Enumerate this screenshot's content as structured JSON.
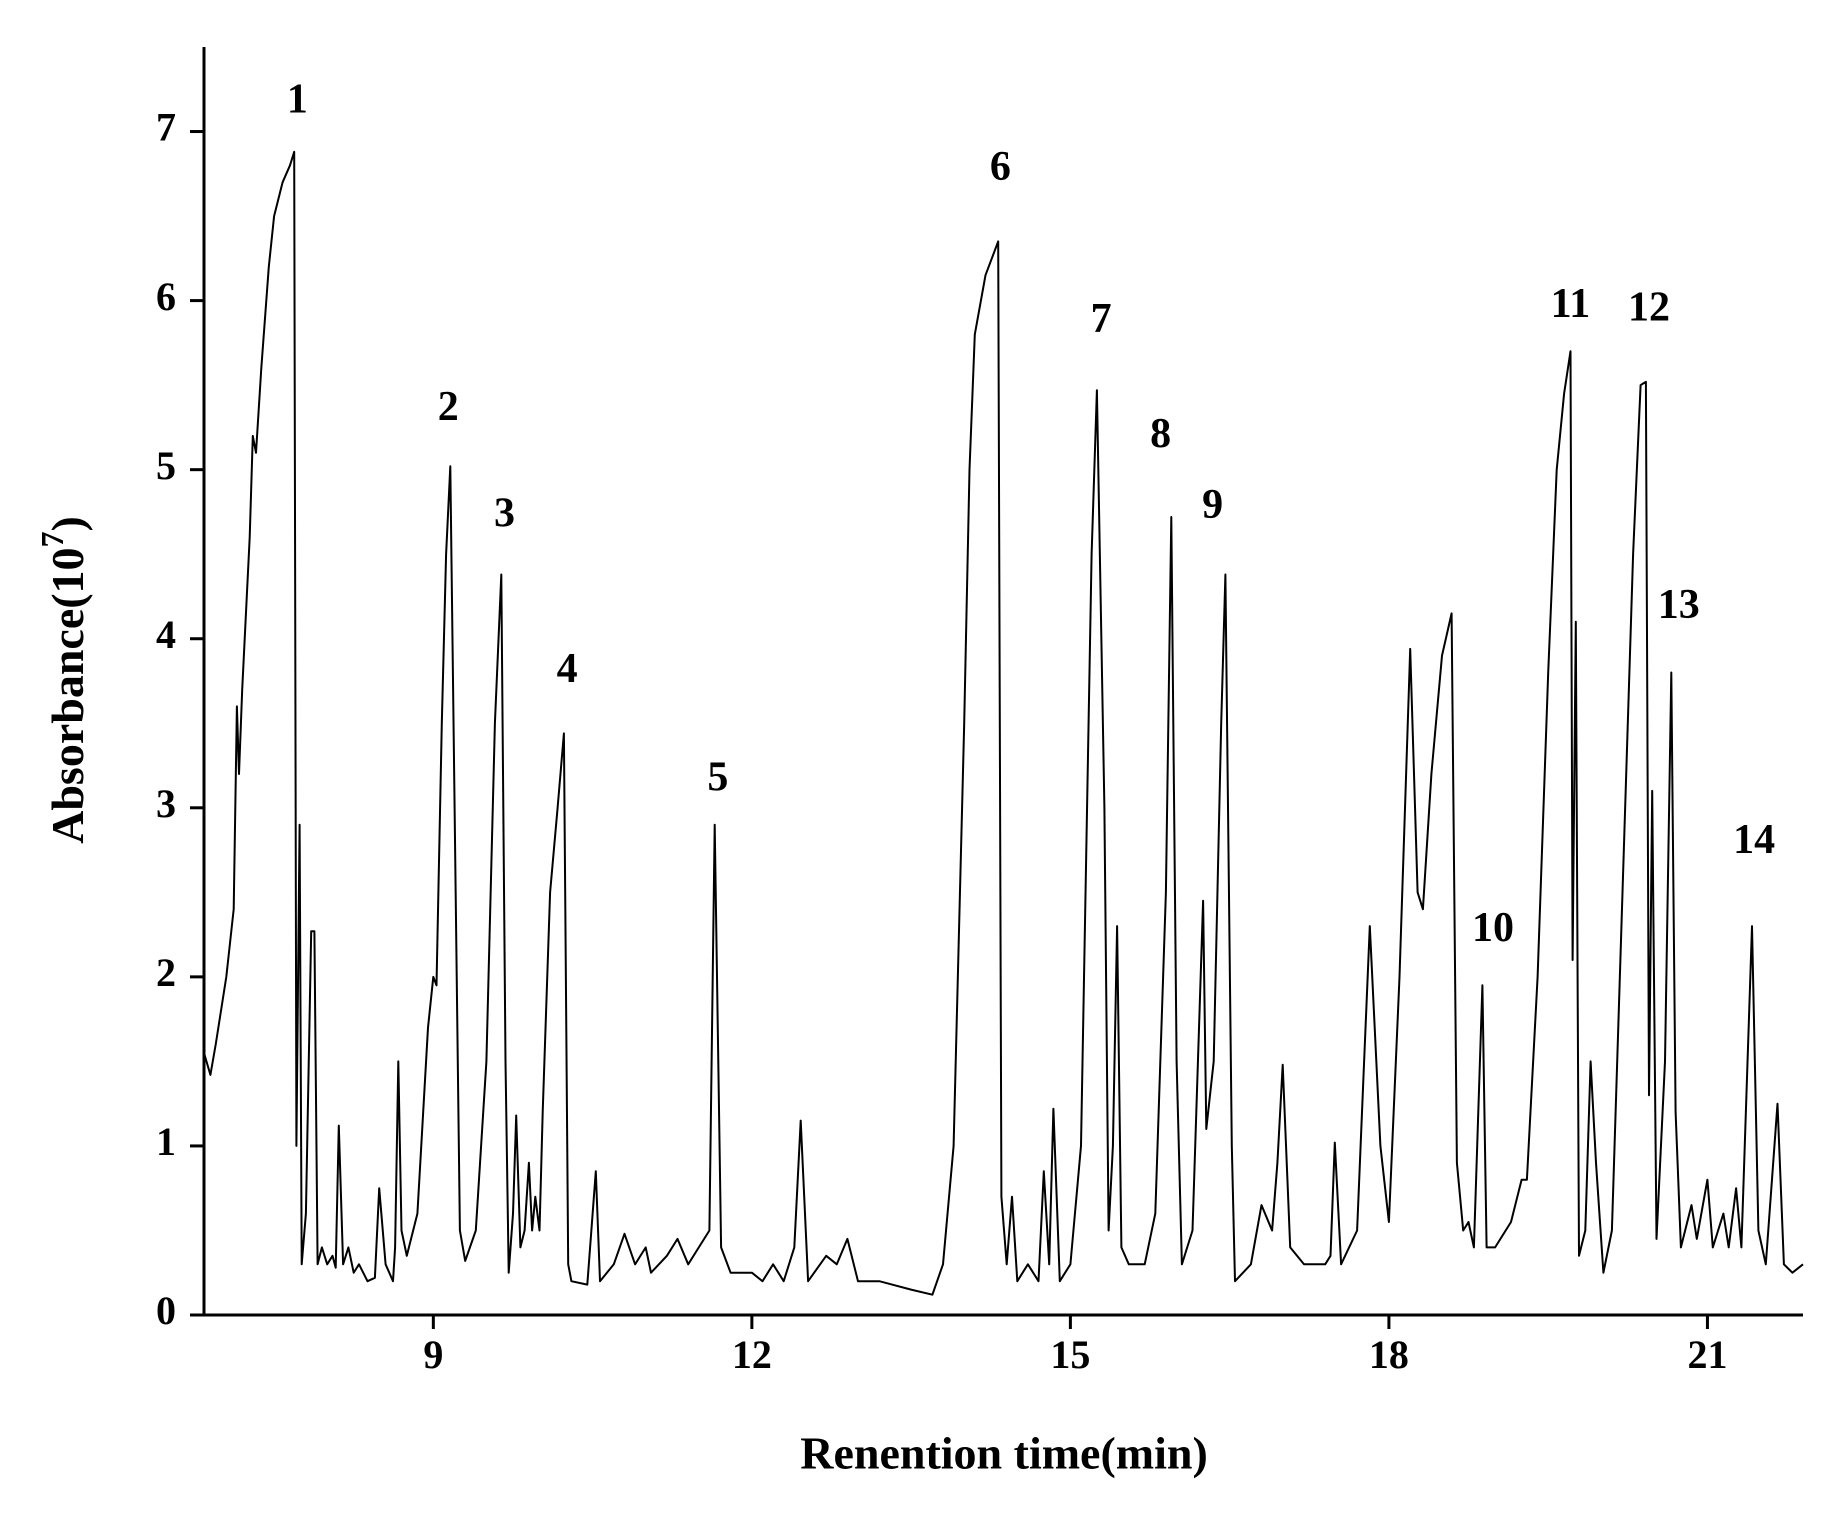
{
  "chart_data": {
    "type": "line",
    "xlabel": "Renention time(min)",
    "ylabel": [
      "Absorbance(10",
      "7",
      ")"
    ],
    "color": "#000000",
    "xlim": [
      6.84,
      21.9
    ],
    "xticks": [
      9,
      12,
      15,
      18,
      21
    ],
    "ylim": [
      0,
      7.5
    ],
    "yticks": [
      0,
      1,
      2,
      3,
      4,
      5,
      6,
      7
    ],
    "x": [
      6.84,
      6.9,
      6.95,
      7.05,
      7.12,
      7.15,
      7.17,
      7.2,
      7.27,
      7.3,
      7.33,
      7.38,
      7.45,
      7.5,
      7.58,
      7.65,
      7.69,
      7.71,
      7.74,
      7.76,
      7.8,
      7.85,
      7.88,
      7.91,
      7.95,
      8.0,
      8.05,
      8.08,
      8.11,
      8.15,
      8.2,
      8.25,
      8.3,
      8.38,
      8.45,
      8.49,
      8.55,
      8.62,
      8.64,
      8.67,
      8.7,
      8.75,
      8.85,
      8.95,
      9.0,
      9.03,
      9.08,
      9.12,
      9.16,
      9.2,
      9.25,
      9.3,
      9.4,
      9.5,
      9.58,
      9.64,
      9.68,
      9.71,
      9.75,
      9.78,
      9.82,
      9.86,
      9.9,
      9.93,
      9.96,
      10.0,
      10.03,
      10.1,
      10.17,
      10.23,
      10.27,
      10.3,
      10.45,
      10.53,
      10.57,
      10.7,
      10.8,
      10.9,
      11.0,
      11.05,
      11.2,
      11.3,
      11.4,
      11.5,
      11.6,
      11.65,
      11.71,
      11.8,
      12.0,
      12.1,
      12.2,
      12.3,
      12.4,
      12.46,
      12.53,
      12.7,
      12.8,
      12.9,
      13.0,
      13.2,
      13.5,
      13.7,
      13.8,
      13.9,
      14.0,
      14.05,
      14.1,
      14.2,
      14.32,
      14.35,
      14.4,
      14.45,
      14.5,
      14.6,
      14.7,
      14.75,
      14.8,
      14.84,
      14.9,
      15.0,
      15.1,
      15.2,
      15.25,
      15.32,
      15.36,
      15.4,
      15.44,
      15.48,
      15.55,
      15.7,
      15.8,
      15.9,
      15.95,
      16.0,
      16.05,
      16.15,
      16.25,
      16.28,
      16.35,
      16.42,
      16.46,
      16.52,
      16.55,
      16.7,
      16.8,
      16.9,
      16.95,
      17.0,
      17.07,
      17.2,
      17.4,
      17.45,
      17.49,
      17.55,
      17.7,
      17.76,
      17.82,
      17.92,
      18.0,
      18.1,
      18.2,
      18.27,
      18.32,
      18.4,
      18.5,
      18.59,
      18.64,
      18.7,
      18.75,
      18.8,
      18.88,
      18.92,
      19.0,
      19.15,
      19.25,
      19.3,
      19.4,
      19.5,
      19.58,
      19.65,
      19.71,
      19.73,
      19.76,
      19.79,
      19.85,
      19.9,
      19.95,
      20.02,
      20.1,
      20.2,
      20.3,
      20.37,
      20.42,
      20.45,
      20.48,
      20.52,
      20.6,
      20.66,
      20.7,
      20.75,
      20.85,
      20.9,
      21.0,
      21.05,
      21.15,
      21.2,
      21.27,
      21.32,
      21.42,
      21.48,
      21.55,
      21.66,
      21.72,
      21.8,
      21.9
    ],
    "values": [
      1.55,
      1.42,
      1.6,
      2.0,
      2.4,
      3.6,
      3.2,
      3.7,
      4.6,
      5.2,
      5.1,
      5.6,
      6.2,
      6.5,
      6.7,
      6.8,
      6.88,
      1.0,
      2.9,
      0.3,
      0.6,
      2.27,
      2.27,
      0.3,
      0.4,
      0.3,
      0.35,
      0.28,
      1.12,
      0.3,
      0.4,
      0.25,
      0.3,
      0.2,
      0.22,
      0.75,
      0.3,
      0.2,
      0.4,
      1.5,
      0.5,
      0.35,
      0.6,
      1.7,
      2.0,
      1.95,
      3.5,
      4.5,
      5.02,
      3.0,
      0.5,
      0.32,
      0.5,
      1.5,
      3.5,
      4.38,
      1.5,
      0.25,
      0.6,
      1.18,
      0.4,
      0.5,
      0.9,
      0.5,
      0.7,
      0.5,
      1.2,
      2.5,
      3.0,
      3.44,
      0.3,
      0.2,
      0.18,
      0.85,
      0.2,
      0.3,
      0.48,
      0.3,
      0.4,
      0.25,
      0.35,
      0.45,
      0.3,
      0.4,
      0.5,
      2.9,
      0.4,
      0.25,
      0.25,
      0.2,
      0.3,
      0.2,
      0.4,
      1.15,
      0.2,
      0.35,
      0.3,
      0.45,
      0.2,
      0.2,
      0.15,
      0.12,
      0.3,
      1.0,
      3.5,
      5.0,
      5.8,
      6.15,
      6.35,
      0.7,
      0.3,
      0.7,
      0.2,
      0.3,
      0.2,
      0.85,
      0.3,
      1.22,
      0.2,
      0.3,
      1.0,
      4.5,
      5.47,
      3.0,
      0.5,
      1.0,
      2.3,
      0.4,
      0.3,
      0.3,
      0.6,
      2.5,
      4.72,
      1.5,
      0.3,
      0.5,
      2.45,
      1.1,
      1.5,
      3.5,
      4.38,
      1.0,
      0.2,
      0.3,
      0.65,
      0.5,
      0.9,
      1.48,
      0.4,
      0.3,
      0.3,
      0.35,
      1.02,
      0.3,
      0.5,
      1.4,
      2.3,
      1.0,
      0.55,
      2.0,
      3.94,
      2.5,
      2.4,
      3.2,
      3.9,
      4.15,
      0.9,
      0.5,
      0.55,
      0.4,
      1.95,
      0.4,
      0.4,
      0.55,
      0.8,
      0.8,
      2.0,
      3.8,
      5.0,
      5.45,
      5.7,
      2.1,
      4.1,
      0.35,
      0.5,
      1.5,
      0.9,
      0.25,
      0.5,
      2.5,
      4.5,
      5.5,
      5.52,
      1.3,
      3.1,
      0.45,
      1.5,
      3.8,
      1.2,
      0.4,
      0.65,
      0.45,
      0.8,
      0.4,
      0.6,
      0.4,
      0.75,
      0.4,
      2.3,
      0.5,
      0.3,
      1.25,
      0.3,
      0.25,
      0.3
    ],
    "annotations": [
      {
        "text": "1",
        "x": 7.72,
        "y": 7.17
      },
      {
        "text": "2",
        "x": 9.14,
        "y": 5.35
      },
      {
        "text": "3",
        "x": 9.67,
        "y": 4.72
      },
      {
        "text": "4",
        "x": 10.26,
        "y": 3.8
      },
      {
        "text": "5",
        "x": 11.68,
        "y": 3.16
      },
      {
        "text": "6",
        "x": 14.34,
        "y": 6.77
      },
      {
        "text": "7",
        "x": 15.29,
        "y": 5.87
      },
      {
        "text": "8",
        "x": 15.85,
        "y": 5.19
      },
      {
        "text": "9",
        "x": 16.34,
        "y": 4.77
      },
      {
        "text": "10",
        "x": 18.98,
        "y": 2.27
      },
      {
        "text": "11",
        "x": 19.71,
        "y": 5.96
      },
      {
        "text": "12",
        "x": 20.45,
        "y": 5.94
      },
      {
        "text": "13",
        "x": 20.73,
        "y": 4.18
      },
      {
        "text": "14",
        "x": 21.44,
        "y": 2.79
      }
    ]
  }
}
